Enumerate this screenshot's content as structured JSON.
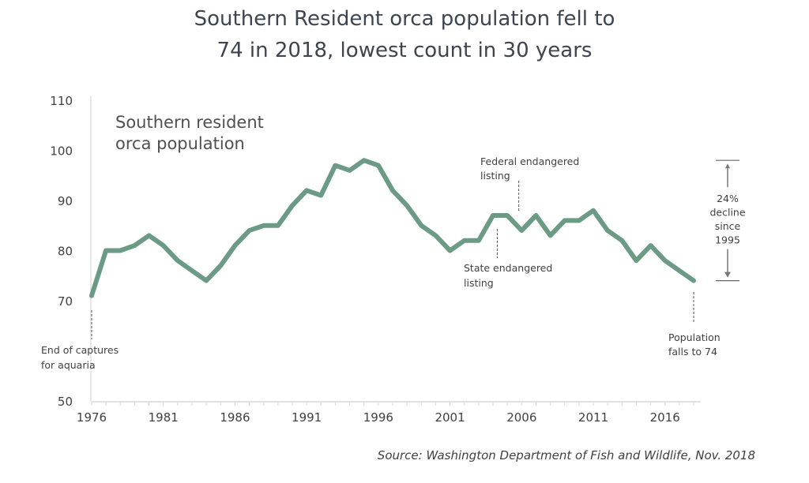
{
  "chart_data": {
    "type": "line",
    "title": "Southern Resident orca population fell to 74 in 2018, lowest count in 30 years",
    "title_lines": [
      "Southern Resident orca population fell to",
      "74 in 2018, lowest count in 30 years"
    ],
    "series_label_lines": [
      "Southern resident",
      "orca population"
    ],
    "xlabel": "",
    "ylabel": "",
    "x": [
      1976,
      1977,
      1978,
      1979,
      1980,
      1981,
      1982,
      1983,
      1984,
      1985,
      1986,
      1987,
      1988,
      1989,
      1990,
      1991,
      1992,
      1993,
      1994,
      1995,
      1996,
      1997,
      1998,
      1999,
      2000,
      2001,
      2002,
      2003,
      2004,
      2005,
      2006,
      2007,
      2008,
      2009,
      2010,
      2011,
      2012,
      2013,
      2014,
      2015,
      2016,
      2017,
      2018
    ],
    "series": [
      {
        "name": "Southern resident orca population",
        "color": "#6b9a85",
        "values": [
          71,
          80,
          80,
          81,
          83,
          81,
          78,
          76,
          74,
          77,
          81,
          84,
          85,
          85,
          89,
          92,
          91,
          97,
          96,
          98,
          97,
          92,
          89,
          85,
          83,
          80,
          82,
          82,
          87,
          87,
          84,
          87,
          83,
          86,
          86,
          88,
          84,
          82,
          78,
          81,
          78,
          76,
          74
        ]
      }
    ],
    "xlim": [
      1976,
      2018.5
    ],
    "ylim": [
      50,
      110
    ],
    "yticks": [
      50,
      70,
      80,
      90,
      100,
      110
    ],
    "xticks": [
      1976,
      1981,
      1986,
      1991,
      1996,
      2001,
      2006,
      2011,
      2016
    ],
    "grid": false,
    "annotations": [
      {
        "id": "captures",
        "x": 1976,
        "lines": [
          "End of captures",
          "for aquaria"
        ],
        "position": "below"
      },
      {
        "id": "state",
        "x": 2004.3,
        "lines": [
          "State endangered",
          "listing"
        ],
        "position": "below"
      },
      {
        "id": "federal",
        "x": 2005.8,
        "lines": [
          "Federal endangered",
          "listing"
        ],
        "position": "above"
      },
      {
        "id": "falls",
        "x": 2018,
        "lines": [
          "Population",
          "falls to 74"
        ],
        "position": "below"
      }
    ],
    "decline_annotation": {
      "from_value": 98,
      "to_value": 74,
      "lines": [
        "24%",
        "decline",
        "since",
        "1995"
      ]
    },
    "source": "Source: Washington Department of Fish and Wildlife, Nov. 2018"
  }
}
